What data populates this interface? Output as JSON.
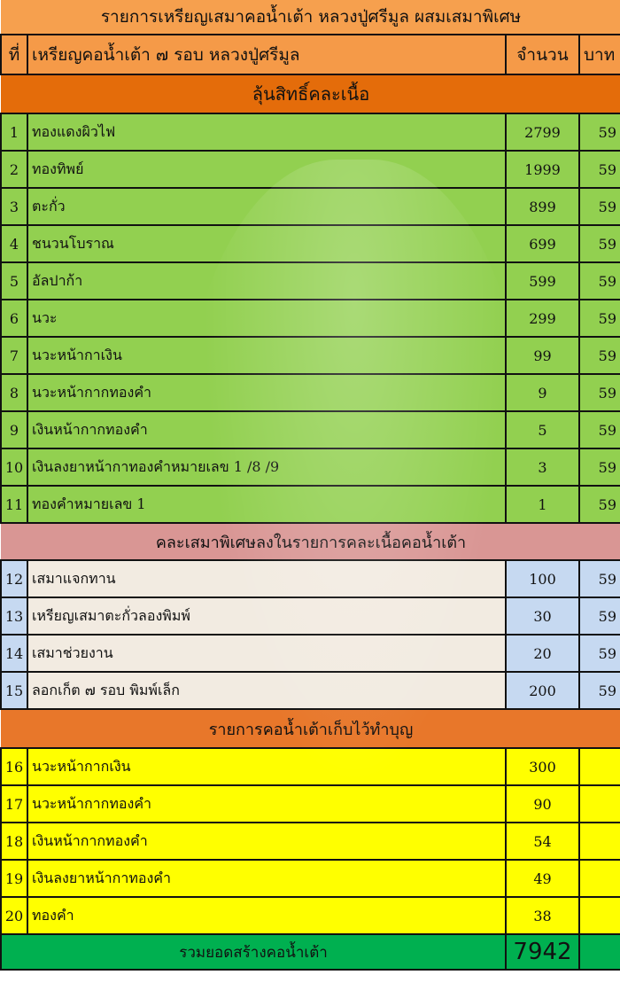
{
  "title": "รายการเหรียญเสมาคอน้ำเต้า หลวงปู่ศรีมูล ผสมเสมาพิเศษ",
  "header": {
    "index": "ที่",
    "name": "เหรียญคอน้ำเต้า ๗ รอบ หลวงปู่ศรีมูล",
    "qty": "จำนวน",
    "baht": "บาท"
  },
  "sections": [
    {
      "title": "ลุ้นสิทธิ์คละเนื้อ",
      "color": "#e46c0a",
      "row_color": "#92d050",
      "style": "g",
      "rows": [
        {
          "no": "1",
          "name": "ทองแดงผิวไฟ",
          "qty": "2799",
          "baht": "59"
        },
        {
          "no": "2",
          "name": "ทองทิพย์",
          "qty": "1999",
          "baht": "59"
        },
        {
          "no": "3",
          "name": "ตะกั่ว",
          "qty": "899",
          "baht": "59"
        },
        {
          "no": "4",
          "name": "ชนวนโบราณ",
          "qty": "699",
          "baht": "59"
        },
        {
          "no": "5",
          "name": "อัลปาก้า",
          "qty": "599",
          "baht": "59"
        },
        {
          "no": "6",
          "name": "นวะ",
          "qty": "299",
          "baht": "59"
        },
        {
          "no": "7",
          "name": "นวะหน้ากาเงิน",
          "qty": "99",
          "baht": "59"
        },
        {
          "no": "8",
          "name": "นวะหน้ากากทองคำ",
          "qty": "9",
          "baht": "59"
        },
        {
          "no": "9",
          "name": "เงินหน้ากากทองคำ",
          "qty": "5",
          "baht": "59"
        },
        {
          "no": "10",
          "name": "เงินลงยาหน้ากาทองคำหมายเลข 1 /8 /9",
          "qty": "3",
          "baht": "59"
        },
        {
          "no": "11",
          "name": "ทองคำหมายเลข 1",
          "qty": "1",
          "baht": "59"
        }
      ]
    },
    {
      "title": "คละเสมาพิเศษลงในรายการคละเนื้อคอน้ำเต้า",
      "color": "#d99694",
      "row_color": "#c6d9f1",
      "style": "b",
      "rows": [
        {
          "no": "12",
          "name": "เสมาแจกทาน",
          "qty": "100",
          "baht": "59"
        },
        {
          "no": "13",
          "name": "เหรียญเสมาตะกั่วลองพิมพ์",
          "qty": "30",
          "baht": "59"
        },
        {
          "no": "14",
          "name": "เสมาช่วยงาน",
          "qty": "20",
          "baht": "59"
        },
        {
          "no": "15",
          "name": "ลอกเก็ต ๗ รอบ พิมพ์เล็ก",
          "qty": "200",
          "baht": "59"
        }
      ]
    },
    {
      "title": "รายการคอน้ำเต้าเก็บไว้ทำบุญ",
      "color": "#e8772a",
      "row_color": "#ffff00",
      "style": "y",
      "rows": [
        {
          "no": "16",
          "name": "นวะหน้ากากเงิน",
          "qty": "300",
          "baht": ""
        },
        {
          "no": "17",
          "name": "นวะหน้ากากทองคำ",
          "qty": "90",
          "baht": ""
        },
        {
          "no": "18",
          "name": "เงินหน้ากากทองคำ",
          "qty": "54",
          "baht": ""
        },
        {
          "no": "19",
          "name": "เงินลงยาหน้ากาทองคำ",
          "qty": "49",
          "baht": ""
        },
        {
          "no": "20",
          "name": "ทองคำ",
          "qty": "38",
          "baht": ""
        }
      ]
    }
  ],
  "total": {
    "label": "รวมยอดสร้างคอน้ำเต้า",
    "qty": "7942",
    "color": "#00b050"
  }
}
